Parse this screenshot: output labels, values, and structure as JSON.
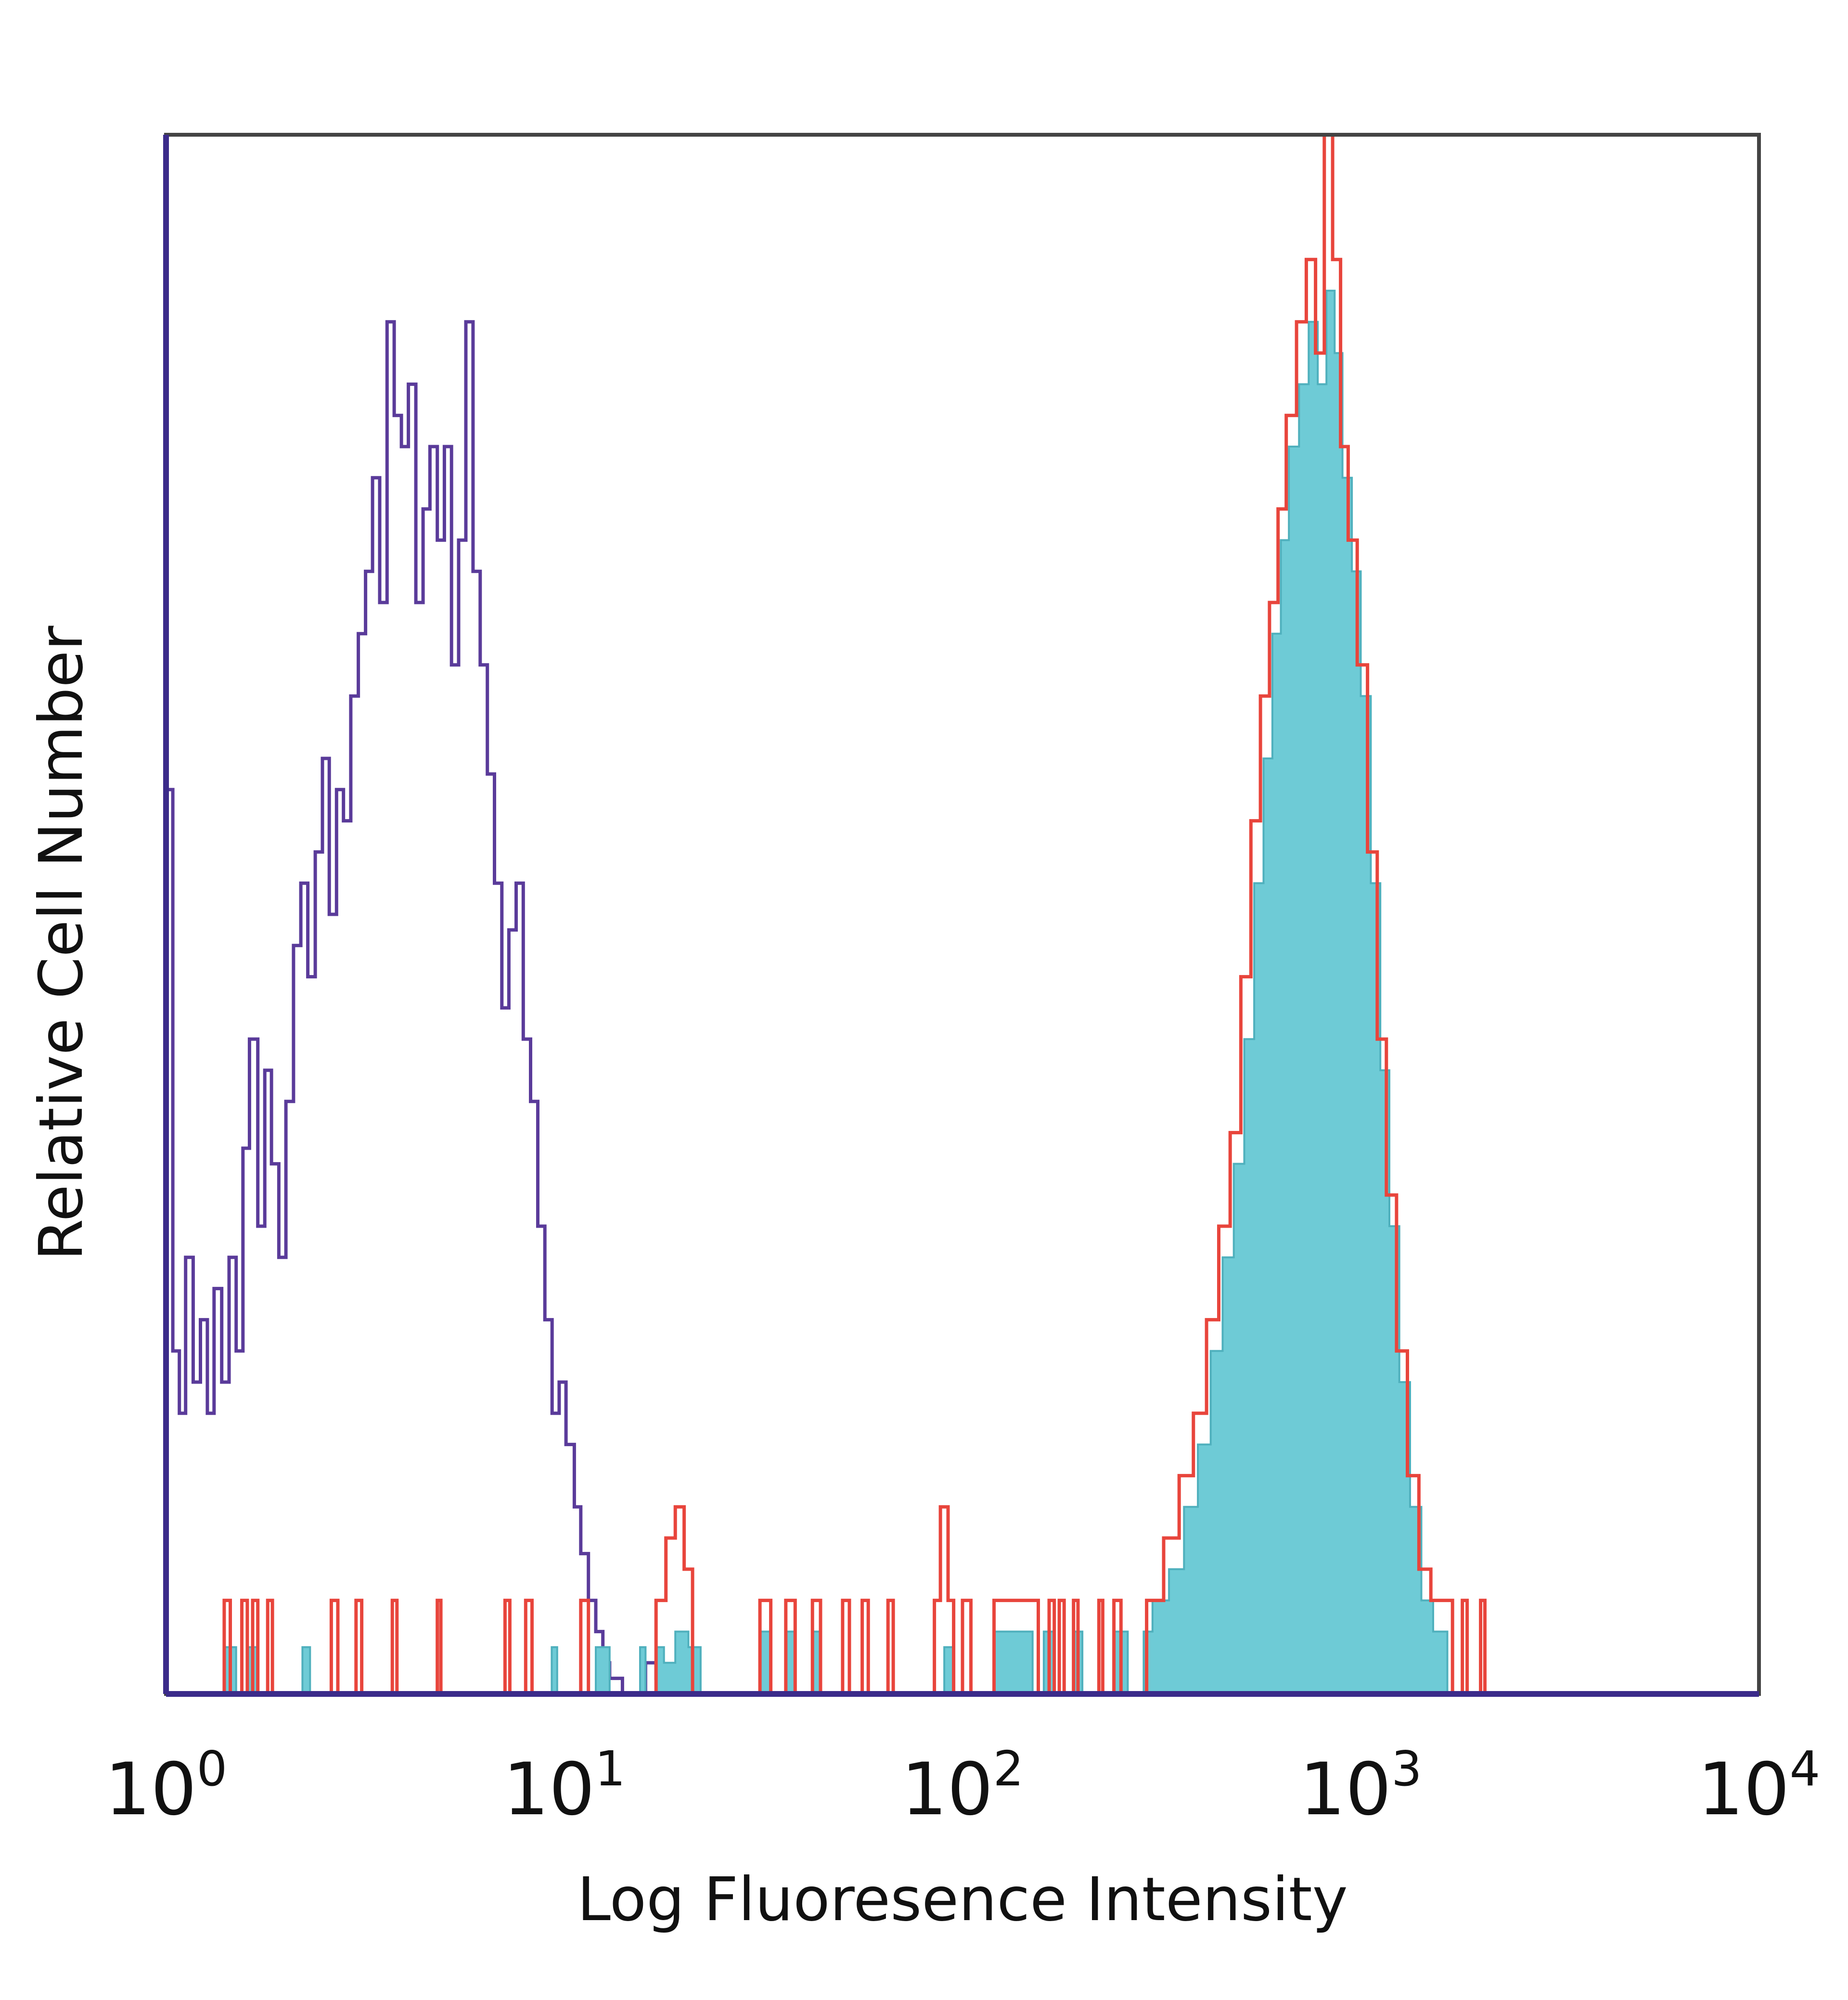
{
  "chart_data": {
    "type": "histogram",
    "xlabel": "Log Fluoresence Intensity",
    "ylabel": "Relative Cell Number",
    "x_scale": "log10",
    "xlim": [
      1,
      10000
    ],
    "ylim": [
      0,
      100
    ],
    "x_ticks": [
      {
        "base": "10",
        "exp": "0"
      },
      {
        "base": "10",
        "exp": "1"
      },
      {
        "base": "10",
        "exp": "2"
      },
      {
        "base": "10",
        "exp": "3"
      },
      {
        "base": "10",
        "exp": "4"
      }
    ],
    "grid": false,
    "legend": "none",
    "series": [
      {
        "style": "outline",
        "color": "#5a3b9a",
        "points": [
          [
            1.0,
            58
          ],
          [
            1.04,
            22
          ],
          [
            1.08,
            18
          ],
          [
            1.12,
            28
          ],
          [
            1.17,
            20
          ],
          [
            1.22,
            24
          ],
          [
            1.27,
            18
          ],
          [
            1.32,
            26
          ],
          [
            1.38,
            20
          ],
          [
            1.44,
            28
          ],
          [
            1.5,
            22
          ],
          [
            1.56,
            35
          ],
          [
            1.62,
            42
          ],
          [
            1.7,
            30
          ],
          [
            1.77,
            40
          ],
          [
            1.84,
            34
          ],
          [
            1.92,
            28
          ],
          [
            2.0,
            38
          ],
          [
            2.09,
            48
          ],
          [
            2.18,
            52
          ],
          [
            2.27,
            46
          ],
          [
            2.37,
            54
          ],
          [
            2.47,
            60
          ],
          [
            2.57,
            50
          ],
          [
            2.68,
            58
          ],
          [
            2.79,
            56
          ],
          [
            2.91,
            64
          ],
          [
            3.04,
            68
          ],
          [
            3.17,
            72
          ],
          [
            3.3,
            78
          ],
          [
            3.44,
            70
          ],
          [
            3.59,
            88
          ],
          [
            3.74,
            82
          ],
          [
            3.9,
            80
          ],
          [
            4.06,
            84
          ],
          [
            4.24,
            70
          ],
          [
            4.42,
            76
          ],
          [
            4.6,
            80
          ],
          [
            4.8,
            74
          ],
          [
            5.0,
            80
          ],
          [
            5.21,
            66
          ],
          [
            5.43,
            74
          ],
          [
            5.66,
            88
          ],
          [
            5.9,
            72
          ],
          [
            6.15,
            66
          ],
          [
            6.41,
            59
          ],
          [
            6.68,
            52
          ],
          [
            6.97,
            44
          ],
          [
            7.26,
            49
          ],
          [
            7.57,
            52
          ],
          [
            7.89,
            42
          ],
          [
            8.23,
            38
          ],
          [
            8.58,
            30
          ],
          [
            8.94,
            24
          ],
          [
            9.32,
            18
          ],
          [
            9.71,
            20
          ],
          [
            10.1,
            16
          ],
          [
            10.6,
            12
          ],
          [
            11.0,
            9
          ],
          [
            11.5,
            6
          ],
          [
            12.0,
            4
          ],
          [
            12.5,
            2
          ],
          [
            13.0,
            1
          ],
          [
            14.0,
            0
          ],
          [
            15.0,
            0
          ],
          [
            16.0,
            2
          ],
          [
            17.0,
            1
          ],
          [
            18.0,
            0
          ],
          [
            10000,
            0
          ]
        ]
      },
      {
        "style": "filled",
        "color": "#6ecbd6",
        "points": [
          [
            1.0,
            0
          ],
          [
            1.4,
            3
          ],
          [
            1.5,
            0
          ],
          [
            1.6,
            3
          ],
          [
            1.7,
            0
          ],
          [
            2.2,
            3
          ],
          [
            2.3,
            0
          ],
          [
            9.3,
            3
          ],
          [
            9.6,
            0
          ],
          [
            12.0,
            3
          ],
          [
            13.0,
            0
          ],
          [
            15.5,
            3
          ],
          [
            16.0,
            0
          ],
          [
            17.0,
            3
          ],
          [
            17.8,
            2
          ],
          [
            19.0,
            4
          ],
          [
            20.5,
            3
          ],
          [
            22.0,
            0
          ],
          [
            31.0,
            4
          ],
          [
            33.0,
            0
          ],
          [
            36.0,
            4
          ],
          [
            38.0,
            0
          ],
          [
            42.0,
            4
          ],
          [
            44.0,
            0
          ],
          [
            90.0,
            3
          ],
          [
            95.0,
            0
          ],
          [
            120.0,
            4
          ],
          [
            140.0,
            4
          ],
          [
            150.0,
            0
          ],
          [
            160.0,
            4
          ],
          [
            170.0,
            0
          ],
          [
            190.0,
            4
          ],
          [
            200.0,
            0
          ],
          [
            240.0,
            4
          ],
          [
            260.0,
            0
          ],
          [
            285.0,
            4
          ],
          [
            300.0,
            6
          ],
          [
            330.0,
            8
          ],
          [
            360.0,
            12
          ],
          [
            390.0,
            16
          ],
          [
            420.0,
            22
          ],
          [
            450.0,
            28
          ],
          [
            480.0,
            34
          ],
          [
            510.0,
            42
          ],
          [
            540.0,
            52
          ],
          [
            570.0,
            60
          ],
          [
            600.0,
            68
          ],
          [
            630.0,
            74
          ],
          [
            660.0,
            80
          ],
          [
            700.0,
            84
          ],
          [
            740.0,
            88
          ],
          [
            780.0,
            84
          ],
          [
            820.0,
            90
          ],
          [
            860.0,
            86
          ],
          [
            900.0,
            78
          ],
          [
            950.0,
            72
          ],
          [
            1000.0,
            64
          ],
          [
            1060.0,
            52
          ],
          [
            1120.0,
            40
          ],
          [
            1180.0,
            30
          ],
          [
            1250.0,
            20
          ],
          [
            1330.0,
            12
          ],
          [
            1420.0,
            6
          ],
          [
            1520.0,
            4
          ],
          [
            1650.0,
            0
          ],
          [
            10000,
            0
          ]
        ]
      },
      {
        "style": "outline",
        "color": "#e8453c",
        "points": [
          [
            1.0,
            0
          ],
          [
            1.4,
            6
          ],
          [
            1.45,
            0
          ],
          [
            1.55,
            6
          ],
          [
            1.6,
            0
          ],
          [
            1.65,
            6
          ],
          [
            1.7,
            0
          ],
          [
            1.8,
            6
          ],
          [
            1.85,
            0
          ],
          [
            2.6,
            6
          ],
          [
            2.7,
            0
          ],
          [
            3.0,
            6
          ],
          [
            3.1,
            0
          ],
          [
            3.7,
            6
          ],
          [
            3.8,
            0
          ],
          [
            4.8,
            6
          ],
          [
            4.9,
            0
          ],
          [
            7.1,
            6
          ],
          [
            7.3,
            0
          ],
          [
            8.0,
            6
          ],
          [
            8.3,
            0
          ],
          [
            11.0,
            6
          ],
          [
            11.5,
            0
          ],
          [
            17.0,
            6
          ],
          [
            18.0,
            10
          ],
          [
            19.0,
            12
          ],
          [
            20.0,
            8
          ],
          [
            21.0,
            0
          ],
          [
            31.0,
            6
          ],
          [
            33.0,
            0
          ],
          [
            36.0,
            6
          ],
          [
            38.0,
            0
          ],
          [
            42.0,
            6
          ],
          [
            44.0,
            0
          ],
          [
            50.0,
            6
          ],
          [
            52.0,
            0
          ],
          [
            56.0,
            6
          ],
          [
            58.0,
            0
          ],
          [
            65.0,
            6
          ],
          [
            67.0,
            0
          ],
          [
            85.0,
            6
          ],
          [
            88.0,
            12
          ],
          [
            92.0,
            6
          ],
          [
            95.0,
            0
          ],
          [
            100.0,
            6
          ],
          [
            105.0,
            0
          ],
          [
            120.0,
            6
          ],
          [
            150.0,
            6
          ],
          [
            155.0,
            0
          ],
          [
            165.0,
            6
          ],
          [
            170.0,
            0
          ],
          [
            175.0,
            6
          ],
          [
            180.0,
            0
          ],
          [
            190.0,
            6
          ],
          [
            195.0,
            0
          ],
          [
            220.0,
            6
          ],
          [
            225.0,
            0
          ],
          [
            240.0,
            6
          ],
          [
            250.0,
            0
          ],
          [
            290.0,
            6
          ],
          [
            320.0,
            10
          ],
          [
            350.0,
            14
          ],
          [
            380.0,
            18
          ],
          [
            410.0,
            24
          ],
          [
            440.0,
            30
          ],
          [
            470.0,
            36
          ],
          [
            500.0,
            46
          ],
          [
            530.0,
            56
          ],
          [
            560.0,
            64
          ],
          [
            590.0,
            70
          ],
          [
            620.0,
            76
          ],
          [
            650.0,
            82
          ],
          [
            690.0,
            88
          ],
          [
            730.0,
            92
          ],
          [
            770.0,
            86
          ],
          [
            810.0,
            100
          ],
          [
            850.0,
            92
          ],
          [
            890.0,
            80
          ],
          [
            930.0,
            74
          ],
          [
            980.0,
            66
          ],
          [
            1040.0,
            54
          ],
          [
            1100.0,
            42
          ],
          [
            1160.0,
            32
          ],
          [
            1230.0,
            22
          ],
          [
            1310.0,
            14
          ],
          [
            1400.0,
            8
          ],
          [
            1500.0,
            6
          ],
          [
            1650.0,
            6
          ],
          [
            1700.0,
            0
          ],
          [
            1800.0,
            6
          ],
          [
            1850.0,
            0
          ],
          [
            2000.0,
            6
          ],
          [
            2050.0,
            0
          ],
          [
            10000,
            0
          ]
        ]
      }
    ]
  }
}
